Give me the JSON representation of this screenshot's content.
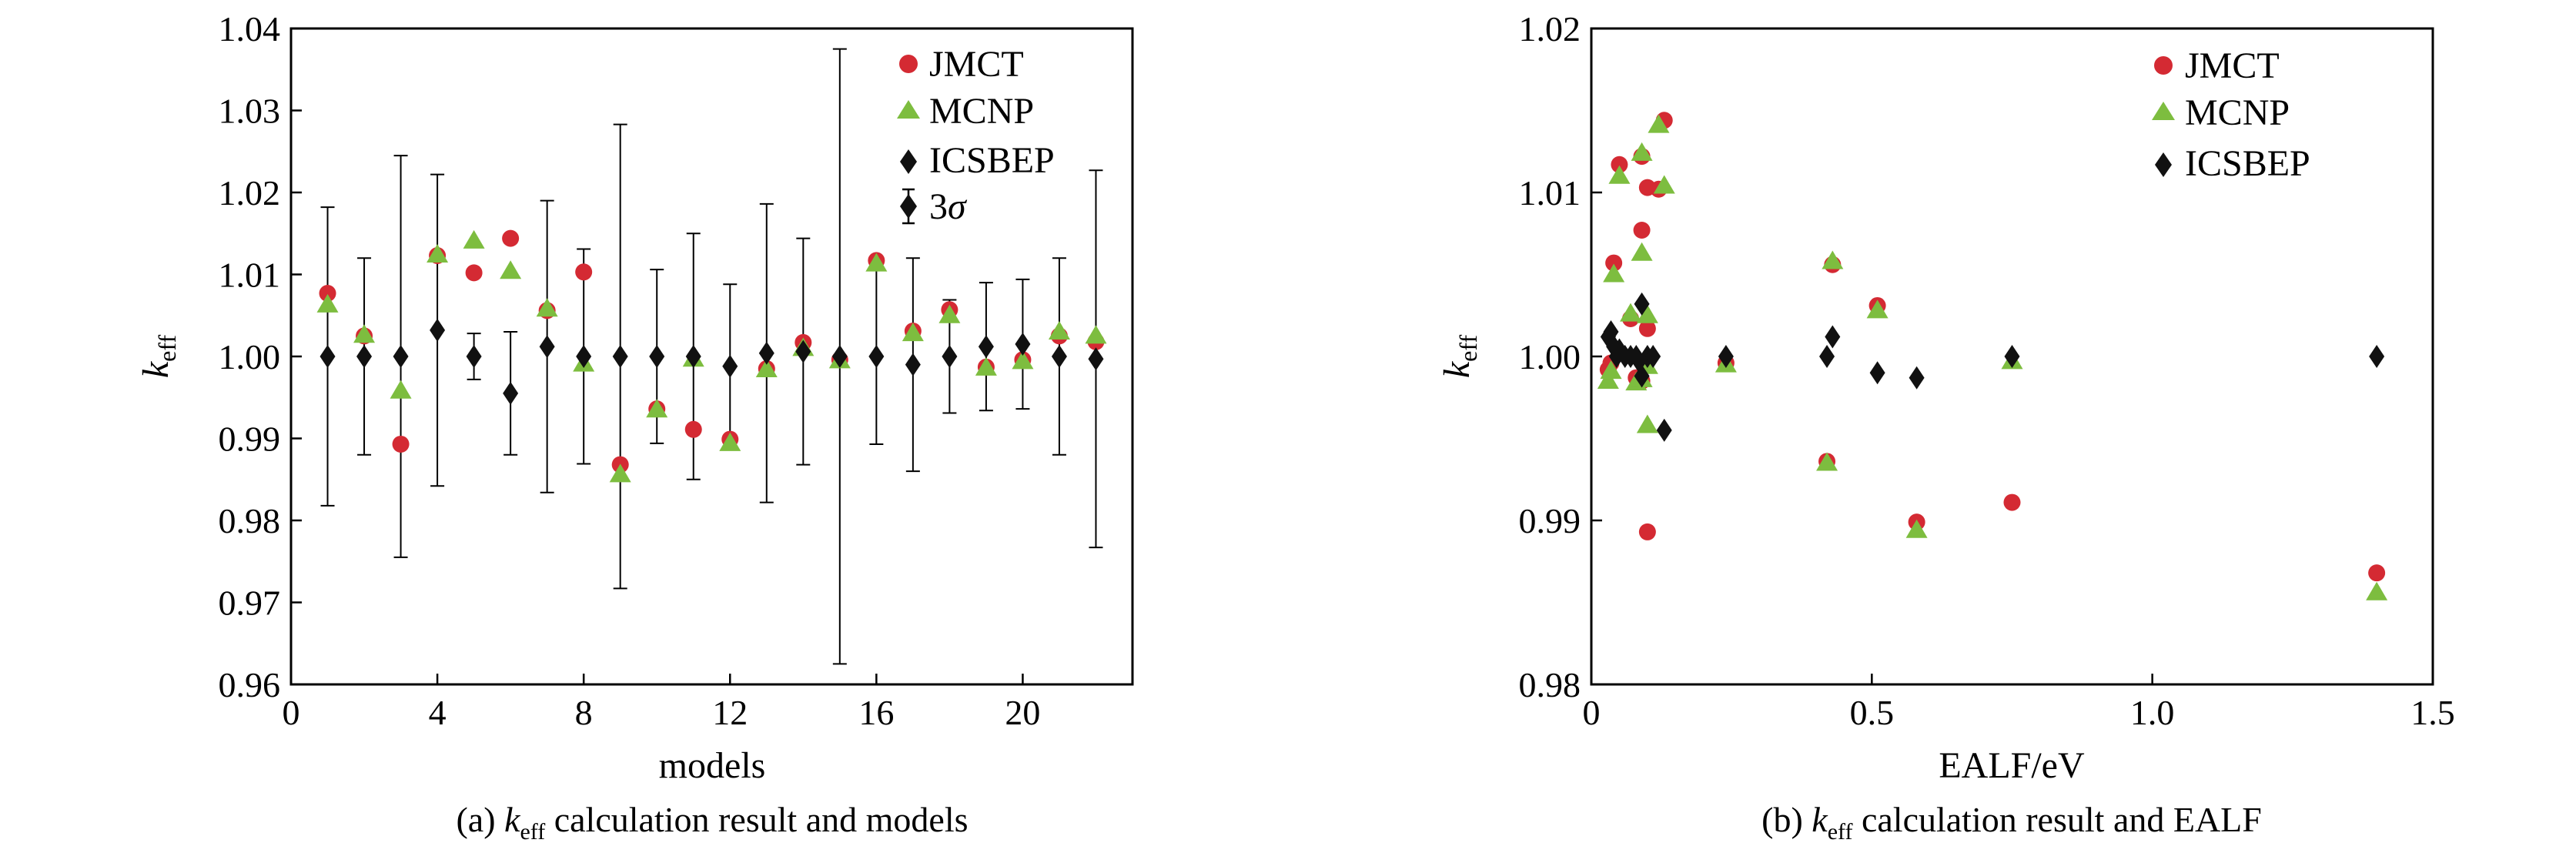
{
  "chart_data": [
    {
      "type": "scatter",
      "caption_prefix": "(a) ",
      "caption_k": "k",
      "caption_sub": "eff",
      "caption_rest": " calculation result and models",
      "xlabel": "models",
      "ylabel_k": "k",
      "ylabel_sub": "eff",
      "xlim": [
        0,
        23
      ],
      "ylim": [
        0.96,
        1.04
      ],
      "xticks": [
        0,
        4,
        8,
        12,
        16,
        20
      ],
      "xtick_labels": [
        "0",
        "4",
        "8",
        "12",
        "16",
        "20"
      ],
      "yticks": [
        0.96,
        0.97,
        0.98,
        0.99,
        1.0,
        1.01,
        1.02,
        1.03,
        1.04
      ],
      "ytick_labels": [
        "0.96",
        "0.97",
        "0.98",
        "0.99",
        "1.00",
        "1.01",
        "1.02",
        "1.03",
        "1.04"
      ],
      "legend_position": "top-right",
      "legend": [
        {
          "label": "JMCT",
          "marker": "circle"
        },
        {
          "label": "MCNP",
          "marker": "triangle"
        },
        {
          "label": "ICSBEP",
          "marker": "diamond"
        },
        {
          "label": "3",
          "label_sigma": "σ",
          "marker": "errorbar"
        }
      ],
      "series": [
        {
          "name": "JMCT",
          "marker": "circle",
          "color": "#d42a33",
          "x": [
            1,
            2,
            3,
            4,
            5,
            6,
            7,
            8,
            9,
            10,
            11,
            12,
            13,
            14,
            15,
            16,
            17,
            18,
            19,
            20,
            21,
            22
          ],
          "y": [
            1.0077,
            1.0025,
            0.9893,
            1.0123,
            1.0102,
            1.0144,
            1.0056,
            1.0103,
            0.9868,
            0.9936,
            0.9911,
            0.9899,
            0.9985,
            1.0017,
            0.9996,
            1.0117,
            1.0031,
            1.0057,
            0.9987,
            0.9996,
            1.0025,
            1.0018
          ]
        },
        {
          "name": "MCNP",
          "marker": "triangle",
          "color": "#7dbd3f",
          "x": [
            1,
            2,
            3,
            4,
            5,
            6,
            7,
            8,
            9,
            10,
            11,
            12,
            13,
            14,
            15,
            16,
            17,
            18,
            19,
            20,
            21,
            22
          ],
          "y": [
            1.0063,
            1.0026,
            0.9958,
            1.0124,
            1.0141,
            1.0104,
            1.0058,
            0.9991,
            0.9856,
            0.9935,
            0.9997,
            0.9894,
            0.9984,
            1.001,
            0.9995,
            1.0113,
            1.0028,
            1.005,
            0.9986,
            0.9994,
            1.003,
            1.0025
          ]
        },
        {
          "name": "ICSBEP",
          "marker": "diamond",
          "color": "#111111",
          "x": [
            1,
            2,
            3,
            4,
            5,
            6,
            7,
            8,
            9,
            10,
            11,
            12,
            13,
            14,
            15,
            16,
            17,
            18,
            19,
            20,
            21,
            22
          ],
          "y": [
            1.0,
            1.0,
            1.0,
            1.0032,
            1.0,
            0.9955,
            1.0012,
            1.0,
            1.0,
            1.0,
            1.0,
            0.9988,
            1.0004,
            1.0006,
            1.0,
            1.0,
            0.999,
            1.0,
            1.0012,
            1.0015,
            1.0,
            0.9997
          ],
          "err3s": [
            0.0182,
            0.012,
            0.0245,
            0.019,
            0.0028,
            0.0075,
            0.0178,
            0.0131,
            0.0283,
            0.0106,
            0.015,
            0.01,
            0.0182,
            0.0138,
            0.0375,
            0.0107,
            0.013,
            0.0069,
            0.0078,
            0.0079,
            0.012,
            0.023
          ]
        }
      ]
    },
    {
      "type": "scatter",
      "caption_prefix": "(b) ",
      "caption_k": "k",
      "caption_sub": "eff",
      "caption_rest": " calculation result and EALF",
      "xlabel": "EALF/eV",
      "ylabel_k": "k",
      "ylabel_sub": "eff",
      "xlim": [
        0,
        1.5
      ],
      "ylim": [
        0.98,
        1.02
      ],
      "xticks": [
        0,
        0.5,
        1.0,
        1.5
      ],
      "xtick_labels": [
        "0",
        "0.5",
        "1.0",
        "1.5"
      ],
      "yticks": [
        0.98,
        0.99,
        1.0,
        1.01,
        1.02
      ],
      "ytick_labels": [
        "0.98",
        "0.99",
        "1.00",
        "1.01",
        "1.02"
      ],
      "legend_position": "top-right",
      "legend": [
        {
          "label": "JMCT",
          "marker": "circle"
        },
        {
          "label": "MCNP",
          "marker": "triangle"
        },
        {
          "label": "ICSBEP",
          "marker": "diamond"
        }
      ],
      "series": [
        {
          "name": "JMCT",
          "marker": "circle",
          "color": "#d42a33",
          "x": [
            0.03,
            0.04,
            0.05,
            0.07,
            0.09,
            0.1,
            0.12,
            0.09,
            0.1,
            0.13,
            0.1,
            0.035,
            0.08,
            0.09,
            0.24,
            0.43,
            0.42,
            0.51,
            0.58,
            0.75,
            1.4
          ],
          "y": [
            0.9992,
            1.0057,
            1.0117,
            1.0023,
            1.0122,
            1.0103,
            1.0102,
            1.0077,
            0.9893,
            1.0144,
            1.0017,
            0.9996,
            0.9987,
            0.9985,
            0.9996,
            1.0056,
            0.9936,
            1.0031,
            0.9899,
            0.9911,
            0.9868
          ]
        },
        {
          "name": "MCNP",
          "marker": "triangle",
          "color": "#7dbd3f",
          "x": [
            0.03,
            0.04,
            0.05,
            0.07,
            0.09,
            0.1,
            0.12,
            0.13,
            0.09,
            0.1,
            0.035,
            0.08,
            0.09,
            0.1,
            0.24,
            0.43,
            0.42,
            0.51,
            0.58,
            0.75,
            1.4
          ],
          "y": [
            0.9985,
            1.005,
            1.011,
            1.0026,
            1.0124,
            1.0025,
            1.0141,
            1.0104,
            1.0063,
            0.9958,
            0.9991,
            0.9984,
            0.9986,
            0.9994,
            0.9995,
            1.0058,
            0.9935,
            1.0028,
            0.9894,
            0.9997,
            0.9856
          ]
        },
        {
          "name": "ICSBEP",
          "marker": "diamond",
          "color": "#111111",
          "x": [
            0.03,
            0.035,
            0.04,
            0.045,
            0.05,
            0.06,
            0.07,
            0.08,
            0.09,
            0.1,
            0.11,
            0.085,
            0.09,
            0.13,
            0.24,
            0.42,
            0.43,
            0.51,
            0.58,
            0.75,
            1.4
          ],
          "y": [
            1.0012,
            1.0015,
            1.0006,
            1.0,
            1.0004,
            1.0,
            1.0,
            1.0,
            1.0032,
            1.0,
            1.0,
            0.9997,
            0.9988,
            0.9955,
            1.0,
            1.0,
            1.0012,
            0.999,
            0.9987,
            1.0,
            1.0
          ]
        }
      ]
    }
  ]
}
